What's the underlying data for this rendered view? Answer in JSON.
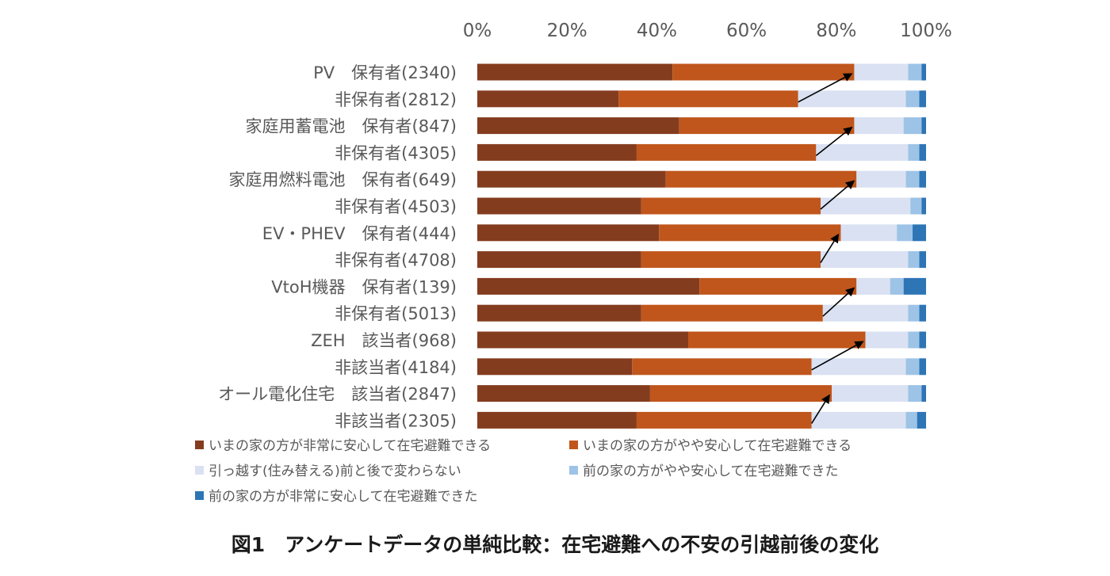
{
  "chart_data": {
    "type": "bar",
    "orientation": "horizontal",
    "stacked": "percent",
    "title": "",
    "xlim": [
      0,
      100
    ],
    "x_ticks": [
      "0%",
      "20%",
      "40%",
      "60%",
      "80%",
      "100%"
    ],
    "x_tick_values": [
      0,
      20,
      40,
      60,
      80,
      100
    ],
    "x_axis_position": "top",
    "grid": false,
    "legend_position": "bottom",
    "categories": [
      "PV　保有者(2340)",
      "非保有者(2812)",
      "家庭用蓄電池　保有者(847)",
      "非保有者(4305)",
      "家庭用燃料電池　保有者(649)",
      "非保有者(4503)",
      "EV・PHEV　保有者(444)",
      "非保有者(4708)",
      "VtoH機器　保有者(139)",
      "非保有者(5013)",
      "ZEH　該当者(968)",
      "非該当者(4184)",
      "オール電化住宅　該当者(2847)",
      "非該当者(2305)"
    ],
    "series": [
      {
        "name": "いまの家の方が非常に安心して在宅避難できる",
        "color": "#843c1f",
        "values": [
          43.5,
          31.5,
          45.0,
          35.5,
          42.0,
          36.5,
          40.5,
          36.5,
          49.5,
          36.5,
          47.0,
          34.5,
          38.5,
          35.5
        ]
      },
      {
        "name": "いまの家の方がやや安心して在宅避難できる",
        "color": "#c0561c",
        "values": [
          40.5,
          40.0,
          39.0,
          40.0,
          42.5,
          40.0,
          40.5,
          40.0,
          35.0,
          40.5,
          39.5,
          40.0,
          40.5,
          39.0
        ]
      },
      {
        "name": "引っ越す(住み替える)前と後で変わらない",
        "color": "#d9e1f2",
        "values": [
          12.0,
          24.0,
          11.0,
          20.5,
          11.0,
          20.0,
          12.5,
          19.5,
          7.5,
          19.0,
          9.5,
          21.0,
          17.0,
          21.0
        ]
      },
      {
        "name": "前の家の方がやや安心して在宅避難できた",
        "color": "#9dc3e6",
        "values": [
          3.0,
          3.0,
          4.0,
          2.5,
          3.0,
          2.5,
          3.5,
          2.5,
          3.0,
          2.5,
          2.5,
          3.0,
          3.0,
          2.5
        ]
      },
      {
        "name": "前の家の方が非常に安心して在宅避難できた",
        "color": "#2e75b6",
        "values": [
          1.0,
          1.5,
          1.0,
          1.5,
          1.5,
          1.0,
          3.0,
          1.5,
          5.0,
          1.5,
          1.5,
          1.5,
          1.0,
          2.0
        ]
      }
    ],
    "annotations": "arrows from the cumulative 'いまの家の方が…' end of each 非保有者/非該当者 bar to that of the corresponding 保有者/該当者 bar"
  },
  "caption": "図1　アンケートデータの単純比較：在宅避難への不安の引越前後の変化"
}
